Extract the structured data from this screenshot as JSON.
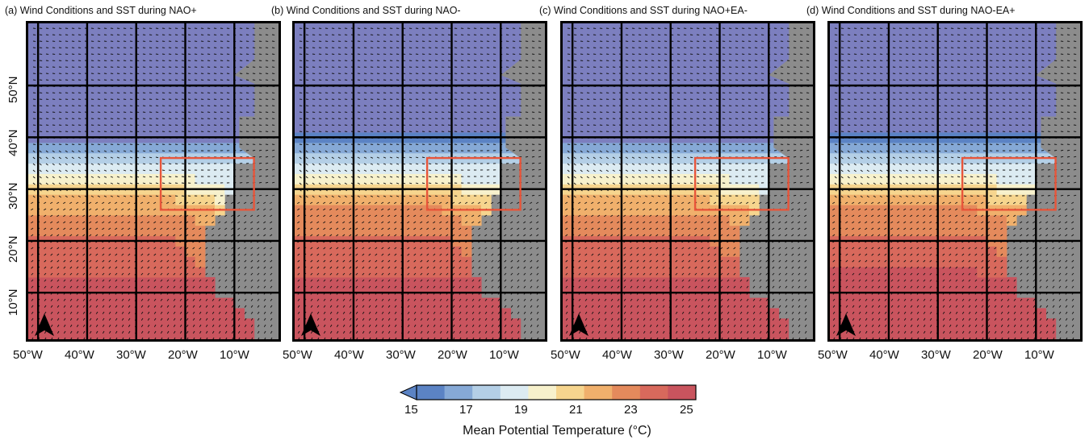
{
  "panels": [
    {
      "title": "(a) Wind Conditions and SST during NAO+"
    },
    {
      "title": "(b) Wind Conditions and SST during NAO-"
    },
    {
      "title": "(c) Wind Conditions and SST during NAO+EA-"
    },
    {
      "title": "(d) Wind Conditions and SST during NAO-EA+"
    }
  ],
  "map": {
    "lon_range": [
      -52,
      -1
    ],
    "lat_range": [
      1,
      62
    ],
    "x_ticks": [
      "50°W",
      "40°W",
      "30°W",
      "20°W",
      "10°W"
    ],
    "y_ticks": [
      "10°N",
      "20°N",
      "30°N",
      "40°N",
      "50°N"
    ],
    "study_box": {
      "lon": [
        -25,
        -6
      ],
      "lat": [
        26,
        36
      ],
      "color": "#e8553a"
    },
    "land_color": "#8c8c8c",
    "north_arrow": "north-arrow-icon"
  },
  "colorbar": {
    "label": "Mean Potential Temperature (°C)",
    "ticks": [
      "15",
      "17",
      "19",
      "21",
      "23",
      "25"
    ],
    "range": [
      15,
      25
    ],
    "extend": "min",
    "colors": [
      "#5b83c4",
      "#86a9d6",
      "#b4cfe6",
      "#dcebf2",
      "#f7f1cc",
      "#f6d58e",
      "#f0b06c",
      "#e48a5c",
      "#d8695c",
      "#c9545e"
    ]
  }
}
